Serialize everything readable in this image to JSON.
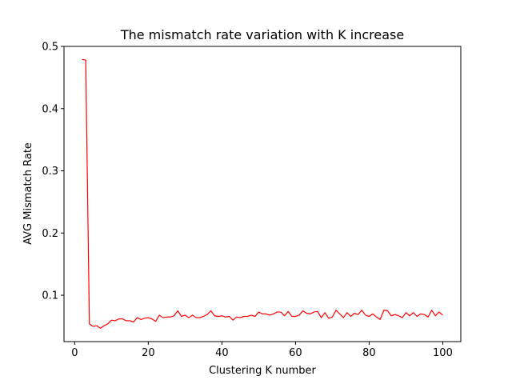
{
  "chart_data": {
    "type": "line",
    "title": "The mismatch rate variation with K increase",
    "xlabel": "Clustering K number",
    "ylabel": "AVG Mismatch Rate",
    "xlim": [
      -2.9,
      104.9
    ],
    "ylim": [
      0.0255,
      0.5
    ],
    "xticks": [
      0,
      20,
      40,
      60,
      80,
      100
    ],
    "yticks": [
      0.1,
      0.2,
      0.3,
      0.4,
      0.5
    ],
    "xtick_labels": [
      "0",
      "20",
      "40",
      "60",
      "80",
      "100"
    ],
    "ytick_labels": [
      "0.1",
      "0.2",
      "0.3",
      "0.4",
      "0.5"
    ],
    "grid": false,
    "series": [
      {
        "color": "#ff0000",
        "x": [
          2,
          3,
          4,
          5,
          6,
          7,
          8,
          9,
          10,
          11,
          12,
          13,
          14,
          15,
          16,
          17,
          18,
          19,
          20,
          21,
          22,
          23,
          24,
          25,
          26,
          27,
          28,
          29,
          30,
          31,
          32,
          33,
          34,
          35,
          36,
          37,
          38,
          39,
          40,
          41,
          42,
          43,
          44,
          45,
          46,
          47,
          48,
          49,
          50,
          51,
          52,
          53,
          54,
          55,
          56,
          57,
          58,
          59,
          60,
          61,
          62,
          63,
          64,
          65,
          66,
          67,
          68,
          69,
          70,
          71,
          72,
          73,
          74,
          75,
          76,
          77,
          78,
          79,
          80,
          81,
          82,
          83,
          84,
          85,
          86,
          87,
          88,
          89,
          90,
          91,
          92,
          93,
          94,
          95,
          96,
          97,
          98,
          99,
          100
        ],
        "y": [
          0.479,
          0.478,
          0.054,
          0.05,
          0.051,
          0.047,
          0.051,
          0.054,
          0.06,
          0.059,
          0.062,
          0.062,
          0.059,
          0.059,
          0.057,
          0.064,
          0.061,
          0.063,
          0.064,
          0.062,
          0.058,
          0.068,
          0.064,
          0.065,
          0.065,
          0.067,
          0.075,
          0.066,
          0.068,
          0.064,
          0.068,
          0.064,
          0.064,
          0.066,
          0.069,
          0.075,
          0.067,
          0.066,
          0.067,
          0.065,
          0.066,
          0.06,
          0.065,
          0.064,
          0.066,
          0.066,
          0.068,
          0.066,
          0.073,
          0.07,
          0.07,
          0.068,
          0.07,
          0.073,
          0.073,
          0.067,
          0.074,
          0.066,
          0.066,
          0.068,
          0.075,
          0.071,
          0.07,
          0.073,
          0.074,
          0.064,
          0.072,
          0.063,
          0.065,
          0.076,
          0.07,
          0.064,
          0.072,
          0.066,
          0.071,
          0.069,
          0.076,
          0.068,
          0.066,
          0.07,
          0.065,
          0.061,
          0.076,
          0.075,
          0.067,
          0.069,
          0.067,
          0.064,
          0.072,
          0.067,
          0.072,
          0.066,
          0.07,
          0.069,
          0.065,
          0.076,
          0.067,
          0.073,
          0.068
        ]
      }
    ]
  }
}
